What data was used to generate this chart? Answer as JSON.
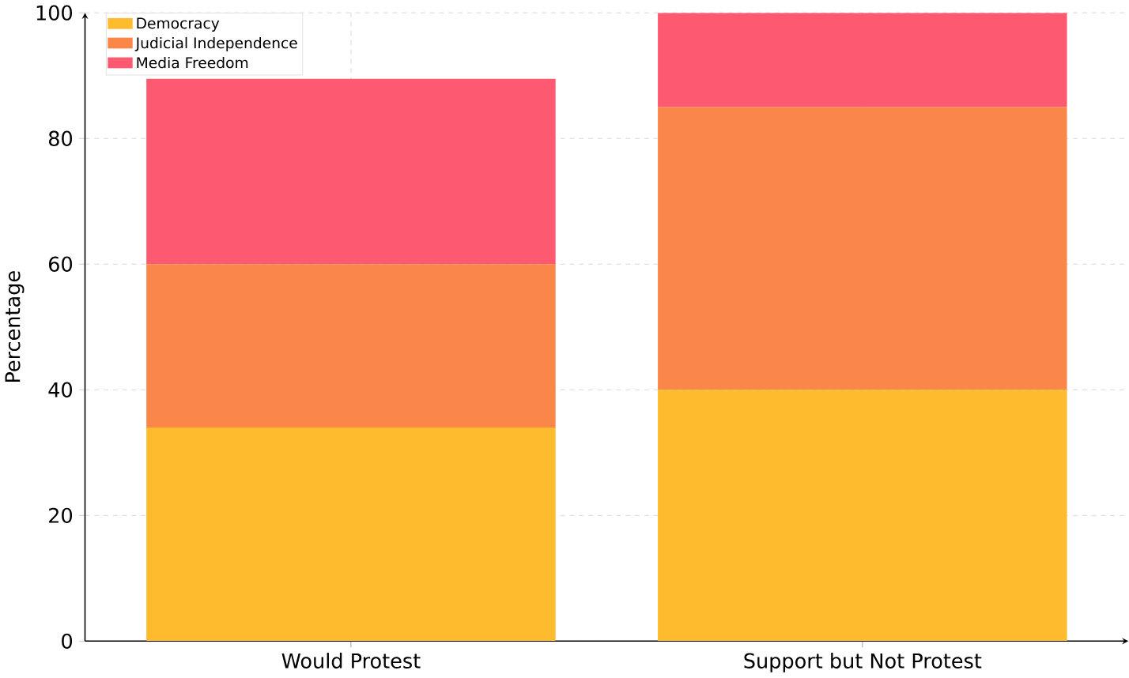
{
  "chart_data": {
    "type": "bar",
    "stacked": true,
    "ylabel": "Percentage",
    "categories": [
      "Would Protest",
      "Support but Not Protest"
    ],
    "series": [
      {
        "name": "Democracy",
        "color": "#fdbb2d",
        "values": [
          34,
          40
        ]
      },
      {
        "name": "Judicial Independence",
        "color": "#fb8649",
        "values": [
          26,
          45
        ]
      },
      {
        "name": "Media Freedom",
        "color": "#fd5a72",
        "values": [
          29.5,
          15
        ]
      }
    ],
    "ylim": [
      0,
      100
    ],
    "yticks": [
      0,
      20,
      40,
      60,
      80,
      100
    ],
    "grid": true,
    "legend": "top left"
  }
}
